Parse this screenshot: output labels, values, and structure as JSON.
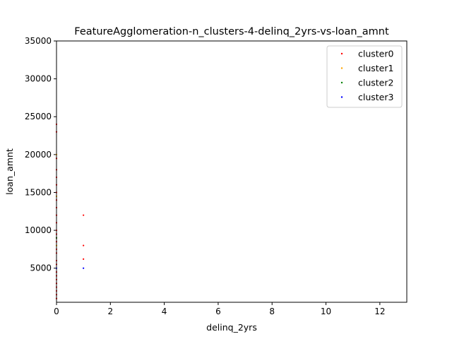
{
  "chart_data": {
    "type": "scatter",
    "title": "FeatureAgglomeration-n_clusters-4-delinq_2yrs-vs-loan_amnt",
    "xlabel": "delinq_2yrs",
    "ylabel": "loan_amnt",
    "xlim": [
      0,
      13
    ],
    "ylim": [
      500,
      35000
    ],
    "xticks": [
      0,
      2,
      4,
      6,
      8,
      10,
      12
    ],
    "yticks": [
      5000,
      10000,
      15000,
      20000,
      25000,
      30000,
      35000
    ],
    "grid": false,
    "legend_position": "top-right",
    "series": [
      {
        "name": "cluster0",
        "color": "#ff0000",
        "points": [
          [
            0,
            24000
          ],
          [
            0,
            23000
          ],
          [
            0,
            19500
          ],
          [
            0,
            18000
          ],
          [
            0,
            17000
          ],
          [
            0,
            16000
          ],
          [
            0,
            15000
          ],
          [
            0,
            14000
          ],
          [
            0,
            13000
          ],
          [
            0,
            12000
          ],
          [
            0,
            11000
          ],
          [
            0,
            10000
          ],
          [
            0,
            9500
          ],
          [
            0,
            9000
          ],
          [
            0,
            8500
          ],
          [
            0,
            7500
          ],
          [
            0,
            7000
          ],
          [
            0,
            6000
          ],
          [
            0,
            5500
          ],
          [
            0,
            4500
          ],
          [
            0,
            4000
          ],
          [
            0,
            3500
          ],
          [
            0,
            3000
          ],
          [
            0,
            2500
          ],
          [
            0,
            2000
          ],
          [
            0,
            1500
          ],
          [
            0,
            1000
          ],
          [
            1,
            12000
          ],
          [
            1,
            8000
          ],
          [
            1,
            6200
          ]
        ]
      },
      {
        "name": "cluster1",
        "color": "#ffa500",
        "points": [
          [
            0,
            20000
          ],
          [
            0,
            14500
          ],
          [
            0,
            8000
          ]
        ]
      },
      {
        "name": "cluster2",
        "color": "#008000",
        "points": [
          [
            0,
            9000
          ]
        ]
      },
      {
        "name": "cluster3",
        "color": "#0000ff",
        "points": [
          [
            1,
            5000
          ],
          [
            0,
            5000
          ]
        ]
      }
    ]
  }
}
